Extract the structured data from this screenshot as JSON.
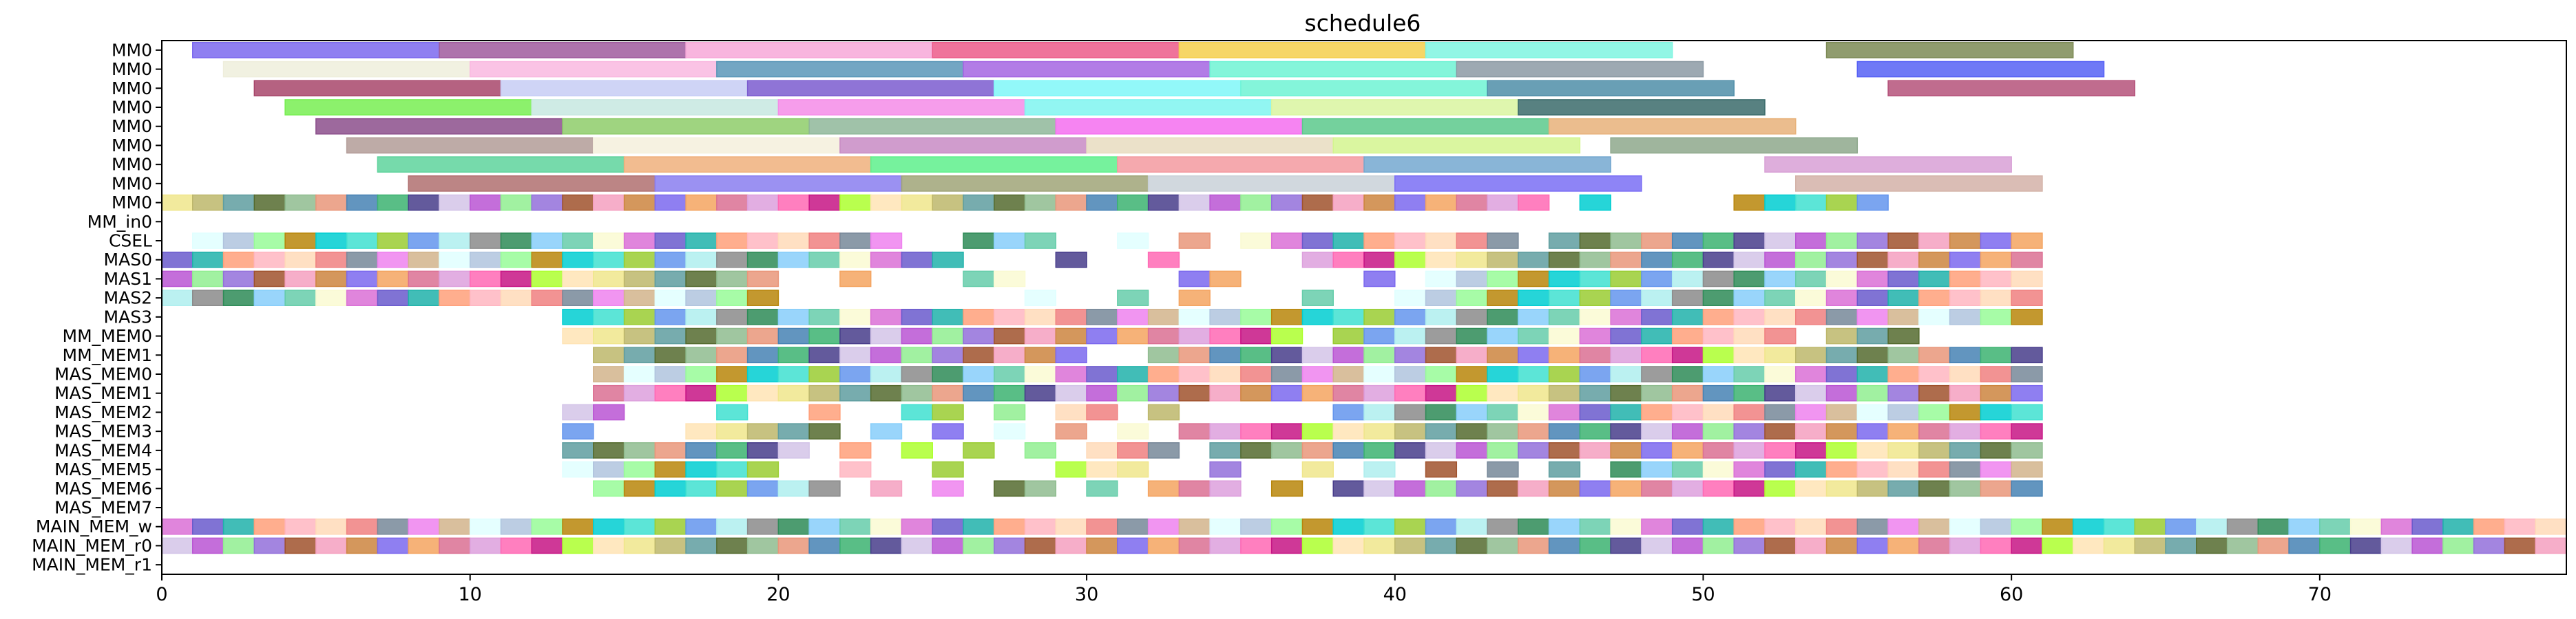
{
  "chart_data": {
    "type": "gantt",
    "title": "schedule6",
    "xlabel": "",
    "ylabel": "",
    "xlim": [
      0,
      78
    ],
    "xticks": [
      0,
      10,
      20,
      30,
      40,
      50,
      60,
      70
    ],
    "xtick_labels": [
      "0",
      "10",
      "20",
      "30",
      "40",
      "50",
      "60",
      "70"
    ],
    "grid": false,
    "rows": [
      "MM0",
      "MM0",
      "MM0",
      "MM0",
      "MM0",
      "MM0",
      "MM0",
      "MM0",
      "MM0",
      "MM_in0",
      "CSEL",
      "MAS0",
      "MAS1",
      "MAS2",
      "MAS3",
      "MM_MEM0",
      "MM_MEM1",
      "MAS_MEM0",
      "MAS_MEM1",
      "MAS_MEM2",
      "MAS_MEM3",
      "MAS_MEM4",
      "MAS_MEM5",
      "MAS_MEM6",
      "MAS_MEM7",
      "MAIN_MEM_w",
      "MAIN_MEM_r0",
      "MAIN_MEM_r1"
    ],
    "long_blocks": [
      {
        "row": 0,
        "spans": [
          [
            1,
            9,
            "#7b68ee"
          ],
          [
            9,
            17,
            "#a05a9e"
          ],
          [
            17,
            25,
            "#f7a8d8"
          ],
          [
            25,
            33,
            "#ec5b8a"
          ],
          [
            33,
            41,
            "#f5cf4c"
          ],
          [
            41,
            49,
            "#7ff5e0"
          ],
          [
            54,
            62,
            "#7d8b55"
          ]
        ]
      },
      {
        "row": 1,
        "spans": [
          [
            2,
            10,
            "#efeedc"
          ],
          [
            10,
            18,
            "#f9b8e0"
          ],
          [
            18,
            26,
            "#5a97b8"
          ],
          [
            26,
            34,
            "#a565e2"
          ],
          [
            34,
            42,
            "#6ff3d4"
          ],
          [
            42,
            50,
            "#8c9aa4"
          ],
          [
            55,
            63,
            "#5661f5"
          ]
        ]
      },
      {
        "row": 2,
        "spans": [
          [
            3,
            11,
            "#a8476b"
          ],
          [
            11,
            19,
            "#c7cdf5"
          ],
          [
            19,
            27,
            "#7b5ccf"
          ],
          [
            27,
            35,
            "#7ff7f8"
          ],
          [
            35,
            43,
            "#6ff3d4"
          ],
          [
            43,
            51,
            "#4f8ea8"
          ],
          [
            56,
            64,
            "#b5527a"
          ]
        ]
      },
      {
        "row": 3,
        "spans": [
          [
            4,
            12,
            "#78ef52"
          ],
          [
            12,
            20,
            "#c7e8e0"
          ],
          [
            20,
            28,
            "#f58ce8"
          ],
          [
            28,
            36,
            "#7ff5f0"
          ],
          [
            36,
            44,
            "#d9f5a0"
          ],
          [
            44,
            52,
            "#3b6b6b"
          ]
        ]
      },
      {
        "row": 4,
        "spans": [
          [
            5,
            13,
            "#8c4f8c"
          ],
          [
            13,
            21,
            "#8ecc6a"
          ],
          [
            21,
            29,
            "#8fb79a"
          ],
          [
            29,
            37,
            "#f56ef0"
          ],
          [
            37,
            45,
            "#5cc98c"
          ],
          [
            45,
            53,
            "#e8b27a"
          ]
        ]
      },
      {
        "row": 5,
        "spans": [
          [
            6,
            14,
            "#b39c98"
          ],
          [
            14,
            22,
            "#f4f0dc"
          ],
          [
            22,
            30,
            "#c88bc4"
          ],
          [
            30,
            38,
            "#e8dcc0"
          ],
          [
            38,
            46,
            "#d3f58f"
          ],
          [
            47,
            55,
            "#8ea88c"
          ]
        ]
      },
      {
        "row": 6,
        "spans": [
          [
            7,
            15,
            "#5ed39c"
          ],
          [
            15,
            23,
            "#f0b07c"
          ],
          [
            23,
            31,
            "#5ef08c"
          ],
          [
            31,
            39,
            "#f39aa0"
          ],
          [
            39,
            47,
            "#74a8d0"
          ],
          [
            52,
            60,
            "#d8a0d6"
          ]
        ]
      },
      {
        "row": 7,
        "spans": [
          [
            8,
            16,
            "#b07070"
          ],
          [
            16,
            24,
            "#8a7ef0"
          ],
          [
            24,
            32,
            "#a0a478"
          ],
          [
            32,
            40,
            "#c9d1d8"
          ],
          [
            40,
            48,
            "#7a6ef4"
          ],
          [
            53,
            61,
            "#d4b2a8"
          ]
        ]
      }
    ],
    "cell_rows": [
      {
        "row": 8,
        "cells": [
          0,
          1,
          2,
          3,
          4,
          5,
          6,
          7,
          8,
          9,
          10,
          11,
          12,
          13,
          14,
          15,
          16,
          17,
          18,
          19,
          20,
          21,
          22,
          23,
          24,
          25,
          26,
          27,
          28,
          29,
          30,
          31,
          32,
          33,
          34,
          35,
          36,
          37,
          38,
          39,
          40,
          41,
          42,
          43,
          44,
          46,
          51,
          52,
          53,
          54,
          55
        ]
      },
      {
        "row": 10,
        "cells": [
          1,
          2,
          3,
          4,
          5,
          6,
          7,
          8,
          9,
          10,
          11,
          12,
          13,
          14,
          15,
          16,
          17,
          18,
          19,
          20,
          21,
          22,
          23,
          26,
          27,
          28,
          31,
          33,
          35,
          36,
          37,
          38,
          39,
          40,
          41,
          42,
          43,
          45,
          46,
          47,
          48,
          49,
          50,
          51,
          52,
          53,
          54,
          55,
          56,
          57,
          58,
          59,
          60
        ]
      },
      {
        "row": 11,
        "cells": [
          0,
          1,
          2,
          3,
          4,
          5,
          6,
          7,
          8,
          9,
          10,
          11,
          12,
          13,
          14,
          15,
          16,
          17,
          18,
          19,
          20,
          21,
          22,
          23,
          24,
          25,
          29,
          32,
          37,
          38,
          39,
          40,
          41,
          42,
          43,
          44,
          45,
          46,
          47,
          48,
          49,
          50,
          51,
          52,
          53,
          54,
          55,
          56,
          57,
          58,
          59,
          60
        ]
      },
      {
        "row": 12,
        "cells": [
          0,
          1,
          2,
          3,
          4,
          5,
          6,
          7,
          8,
          9,
          10,
          11,
          12,
          13,
          14,
          15,
          16,
          17,
          18,
          19,
          22,
          26,
          27,
          33,
          34,
          39,
          41,
          42,
          43,
          44,
          45,
          46,
          47,
          48,
          49,
          50,
          51,
          52,
          53,
          54,
          55,
          56,
          57,
          58,
          59,
          60
        ]
      },
      {
        "row": 13,
        "cells": [
          0,
          1,
          2,
          3,
          4,
          5,
          6,
          7,
          8,
          9,
          10,
          11,
          12,
          13,
          14,
          15,
          16,
          17,
          18,
          19,
          28,
          31,
          33,
          37,
          40,
          41,
          42,
          43,
          44,
          45,
          46,
          47,
          48,
          49,
          50,
          51,
          52,
          53,
          54,
          55,
          56,
          57,
          58,
          59,
          60
        ]
      },
      {
        "row": 14,
        "cells": [
          13,
          14,
          15,
          16,
          17,
          18,
          19,
          20,
          21,
          22,
          23,
          24,
          25,
          26,
          27,
          28,
          29,
          30,
          31,
          32,
          33,
          34,
          35,
          36,
          37,
          38,
          39,
          40,
          41,
          42,
          43,
          44,
          45,
          46,
          47,
          48,
          49,
          50,
          51,
          52,
          53,
          54,
          55,
          56,
          57,
          58,
          59,
          60
        ]
      },
      {
        "row": 15,
        "cells": [
          13,
          14,
          15,
          16,
          17,
          18,
          19,
          20,
          21,
          22,
          23,
          24,
          25,
          26,
          27,
          28,
          29,
          30,
          31,
          32,
          33,
          34,
          35,
          36,
          38,
          39,
          40,
          41,
          42,
          43,
          44,
          45,
          46,
          47,
          48,
          49,
          50,
          51,
          52,
          54,
          55,
          56
        ]
      },
      {
        "row": 16,
        "cells": [
          14,
          15,
          16,
          17,
          18,
          19,
          20,
          21,
          22,
          23,
          24,
          25,
          26,
          27,
          28,
          29,
          32,
          33,
          34,
          35,
          36,
          37,
          38,
          39,
          40,
          41,
          42,
          43,
          44,
          45,
          46,
          47,
          48,
          49,
          50,
          51,
          52,
          53,
          54,
          55,
          56,
          57,
          58,
          59,
          60
        ]
      },
      {
        "row": 17,
        "cells": [
          14,
          15,
          16,
          17,
          18,
          19,
          20,
          21,
          22,
          23,
          24,
          25,
          26,
          27,
          28,
          29,
          30,
          31,
          32,
          33,
          34,
          35,
          36,
          37,
          38,
          39,
          40,
          41,
          42,
          43,
          44,
          45,
          46,
          47,
          48,
          49,
          50,
          51,
          52,
          53,
          54,
          55,
          56,
          57,
          58,
          59,
          60
        ]
      },
      {
        "row": 18,
        "cells": [
          14,
          15,
          16,
          17,
          18,
          19,
          20,
          21,
          22,
          23,
          24,
          25,
          26,
          27,
          28,
          29,
          30,
          31,
          32,
          33,
          34,
          35,
          36,
          37,
          38,
          39,
          40,
          41,
          42,
          43,
          44,
          45,
          46,
          47,
          48,
          49,
          50,
          51,
          52,
          53,
          54,
          55,
          56,
          57,
          58,
          59,
          60
        ]
      },
      {
        "row": 19,
        "cells": [
          13,
          14,
          18,
          21,
          24,
          25,
          27,
          29,
          30,
          32,
          38,
          39,
          40,
          41,
          42,
          43,
          44,
          45,
          46,
          47,
          48,
          49,
          50,
          51,
          52,
          53,
          54,
          55,
          56,
          57,
          58,
          59,
          60
        ]
      },
      {
        "row": 20,
        "cells": [
          13,
          17,
          18,
          19,
          20,
          21,
          23,
          25,
          27,
          29,
          31,
          33,
          34,
          35,
          36,
          37,
          38,
          39,
          40,
          41,
          42,
          43,
          44,
          45,
          46,
          47,
          48,
          49,
          50,
          51,
          52,
          53,
          54,
          55,
          56,
          57,
          58,
          59,
          60
        ]
      },
      {
        "row": 21,
        "cells": [
          13,
          14,
          15,
          16,
          17,
          18,
          19,
          20,
          22,
          24,
          26,
          28,
          30,
          31,
          32,
          34,
          35,
          36,
          37,
          38,
          39,
          40,
          41,
          42,
          43,
          44,
          45,
          46,
          47,
          48,
          49,
          50,
          51,
          52,
          53,
          54,
          55,
          56,
          57,
          58,
          59,
          60
        ]
      },
      {
        "row": 22,
        "cells": [
          13,
          14,
          15,
          16,
          17,
          18,
          19,
          22,
          25,
          29,
          30,
          31,
          34,
          37,
          39,
          41,
          43,
          45,
          47,
          48,
          49,
          50,
          51,
          52,
          53,
          54,
          55,
          56,
          57,
          58,
          59,
          60
        ]
      },
      {
        "row": 23,
        "cells": [
          14,
          15,
          16,
          17,
          18,
          19,
          20,
          21,
          23,
          25,
          27,
          28,
          30,
          32,
          33,
          34,
          36,
          38,
          39,
          40,
          41,
          42,
          43,
          44,
          45,
          46,
          47,
          48,
          49,
          50,
          51,
          52,
          53,
          54,
          55,
          56,
          57,
          58,
          59,
          60
        ]
      },
      {
        "row": 25,
        "cells": [
          0,
          1,
          2,
          3,
          4,
          5,
          6,
          7,
          8,
          9,
          10,
          11,
          12,
          13,
          14,
          15,
          16,
          17,
          18,
          19,
          20,
          21,
          22,
          23,
          24,
          25,
          26,
          27,
          28,
          29,
          30,
          31,
          32,
          33,
          34,
          35,
          36,
          37,
          38,
          39,
          40,
          41,
          42,
          43,
          44,
          45,
          46,
          47,
          48,
          49,
          50,
          51,
          52,
          53,
          54,
          55,
          56,
          57,
          58,
          59,
          60,
          61,
          62,
          63,
          64,
          65,
          66,
          67,
          68,
          69,
          70,
          71,
          72,
          73,
          74,
          75,
          76,
          77
        ]
      },
      {
        "row": 26,
        "cells": [
          0,
          1,
          2,
          3,
          4,
          5,
          6,
          7,
          8,
          9,
          10,
          11,
          12,
          13,
          14,
          15,
          16,
          17,
          18,
          19,
          20,
          21,
          22,
          23,
          24,
          25,
          26,
          27,
          28,
          29,
          30,
          31,
          32,
          33,
          34,
          35,
          36,
          37,
          38,
          39,
          40,
          41,
          42,
          43,
          44,
          45,
          46,
          47,
          48,
          49,
          50,
          51,
          52,
          53,
          54,
          55,
          56,
          57,
          58,
          59,
          60,
          61,
          62,
          63,
          64,
          65,
          66,
          67,
          68,
          69,
          70,
          71,
          72,
          73,
          74,
          75,
          76,
          77
        ]
      }
    ],
    "palette": [
      "#8fbc8f",
      "#f08080",
      "#d3c4e8",
      "#b0c4de",
      "#f5a0c0",
      "#9acd32",
      "#dda0dd",
      "#87cefa",
      "#f0e68c",
      "#20b2aa",
      "#e9967a",
      "#778899",
      "#ba55d3",
      "#98fb98",
      "#cd853f",
      "#6495ed",
      "#ff69b4",
      "#66cdaa",
      "#bdb76b",
      "#ffa07a",
      "#4682b4",
      "#ee82ee",
      "#90ee90",
      "#b8860b",
      "#7b68ee",
      "#afeeee",
      "#c71585",
      "#fafad2",
      "#5f9ea0",
      "#ffb6c1",
      "#3cb371",
      "#d2b48c",
      "#9370db",
      "#00ced1",
      "#f4a460",
      "#8b8b8b",
      "#adff2f",
      "#da70d6",
      "#556b2f",
      "#ffdab9",
      "#483d8b",
      "#e0ffff",
      "#a0522d",
      "#40e0d0",
      "#db7093",
      "#2e8b57",
      "#ffe4b5",
      "#6a5acd"
    ]
  }
}
